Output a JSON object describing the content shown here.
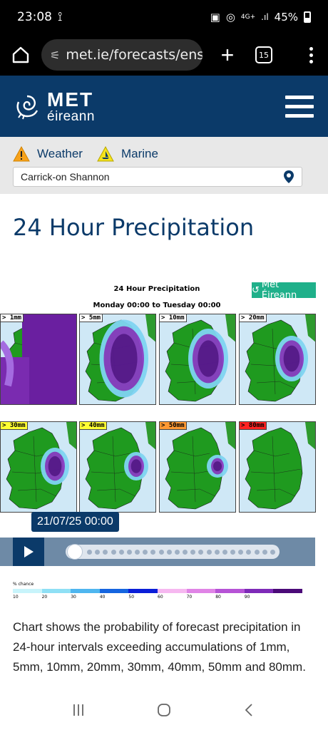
{
  "status": {
    "time": "23:08",
    "network": "4G+",
    "battery": "45%"
  },
  "browser": {
    "url": "met.ie/forecasts/ens",
    "tab_count": "15"
  },
  "site": {
    "logo_met": "MET",
    "logo_eireann": "éireann"
  },
  "warnings": {
    "weather_label": "Weather",
    "marine_label": "Marine"
  },
  "location": {
    "value": "Carrick-on Shannon"
  },
  "page": {
    "title": "24 Hour Precipitation"
  },
  "chart": {
    "heading": "24 Hour Precipitation",
    "period": "Monday 00:00 to Tuesday 00:00",
    "logo": "Met Éireann",
    "panels": [
      {
        "label": "> 1mm",
        "label_color": "#ffffff"
      },
      {
        "label": "> 5mm",
        "label_color": "#ffffff"
      },
      {
        "label": "> 10mm",
        "label_color": "#ffffff"
      },
      {
        "label": "> 20mm",
        "label_color": "#ffffff"
      },
      {
        "label": "> 30mm",
        "label_color": "#ffff33"
      },
      {
        "label": "> 40mm",
        "label_color": "#ffff33"
      },
      {
        "label": "> 50mm",
        "label_color": "#ff9933"
      },
      {
        "label": "> 80mm",
        "label_color": "#ff2222"
      }
    ]
  },
  "player": {
    "date": "21/07/25 00:00"
  },
  "legend": {
    "title": "% chance",
    "ticks": [
      "10",
      "20",
      "30",
      "40",
      "50",
      "60",
      "70",
      "80",
      "90"
    ],
    "colors": [
      "#c8f4fb",
      "#8fe0f5",
      "#4fb6ef",
      "#1565e0",
      "#0a1ed8",
      "#f6b8f0",
      "#e084e6",
      "#b653d6",
      "#7e2ab8",
      "#4b0a78"
    ]
  },
  "description": "Chart shows the probability of forecast precipitation in 24-hour intervals exceeding accumulations of 1mm, 5mm, 10mm, 20mm, 30mm, 40mm, 50mm and 80mm."
}
